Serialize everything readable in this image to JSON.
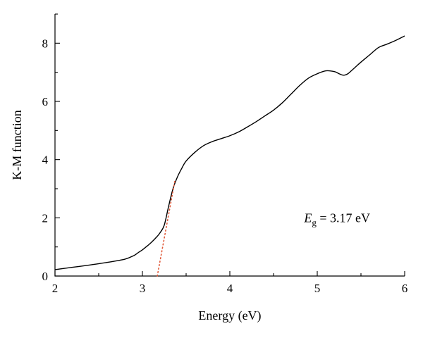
{
  "chart_data": {
    "type": "line",
    "title": "",
    "xlabel": "Energy (eV)",
    "ylabel": "K-M function",
    "xlim": [
      2,
      6
    ],
    "ylim": [
      0,
      9
    ],
    "xticks": [
      2,
      3,
      4,
      5,
      6
    ],
    "yticks": [
      0,
      2,
      4,
      6,
      8
    ],
    "grid": false,
    "series": [
      {
        "style": "solid",
        "color": "#000000",
        "x": [
          2.0,
          2.2,
          2.4,
          2.6,
          2.8,
          2.9,
          2.95,
          3.0,
          3.05,
          3.1,
          3.15,
          3.2,
          3.25,
          3.3,
          3.35,
          3.4,
          3.45,
          3.5,
          3.6,
          3.7,
          3.8,
          3.9,
          4.0,
          4.1,
          4.2,
          4.3,
          4.4,
          4.5,
          4.6,
          4.7,
          4.8,
          4.9,
          5.0,
          5.1,
          5.2,
          5.25,
          5.3,
          5.35,
          5.4,
          5.5,
          5.6,
          5.7,
          5.8,
          5.9,
          6.0
        ],
        "y": [
          0.22,
          0.3,
          0.38,
          0.47,
          0.58,
          0.7,
          0.8,
          0.9,
          1.02,
          1.15,
          1.3,
          1.48,
          1.75,
          2.4,
          3.0,
          3.4,
          3.7,
          3.95,
          4.25,
          4.48,
          4.62,
          4.72,
          4.82,
          4.95,
          5.12,
          5.3,
          5.5,
          5.7,
          5.95,
          6.25,
          6.55,
          6.8,
          6.95,
          7.05,
          7.02,
          6.95,
          6.9,
          6.95,
          7.08,
          7.35,
          7.6,
          7.85,
          7.97,
          8.1,
          8.25
        ]
      },
      {
        "style": "dotted",
        "color": "#e05a3a",
        "x": [
          3.17,
          3.37
        ],
        "y": [
          0.0,
          3.25
        ]
      }
    ],
    "annotation": {
      "symbol": "E",
      "subscript": "g",
      "text": " = 3.17 eV",
      "x": 4.85,
      "y": 2.0
    }
  }
}
